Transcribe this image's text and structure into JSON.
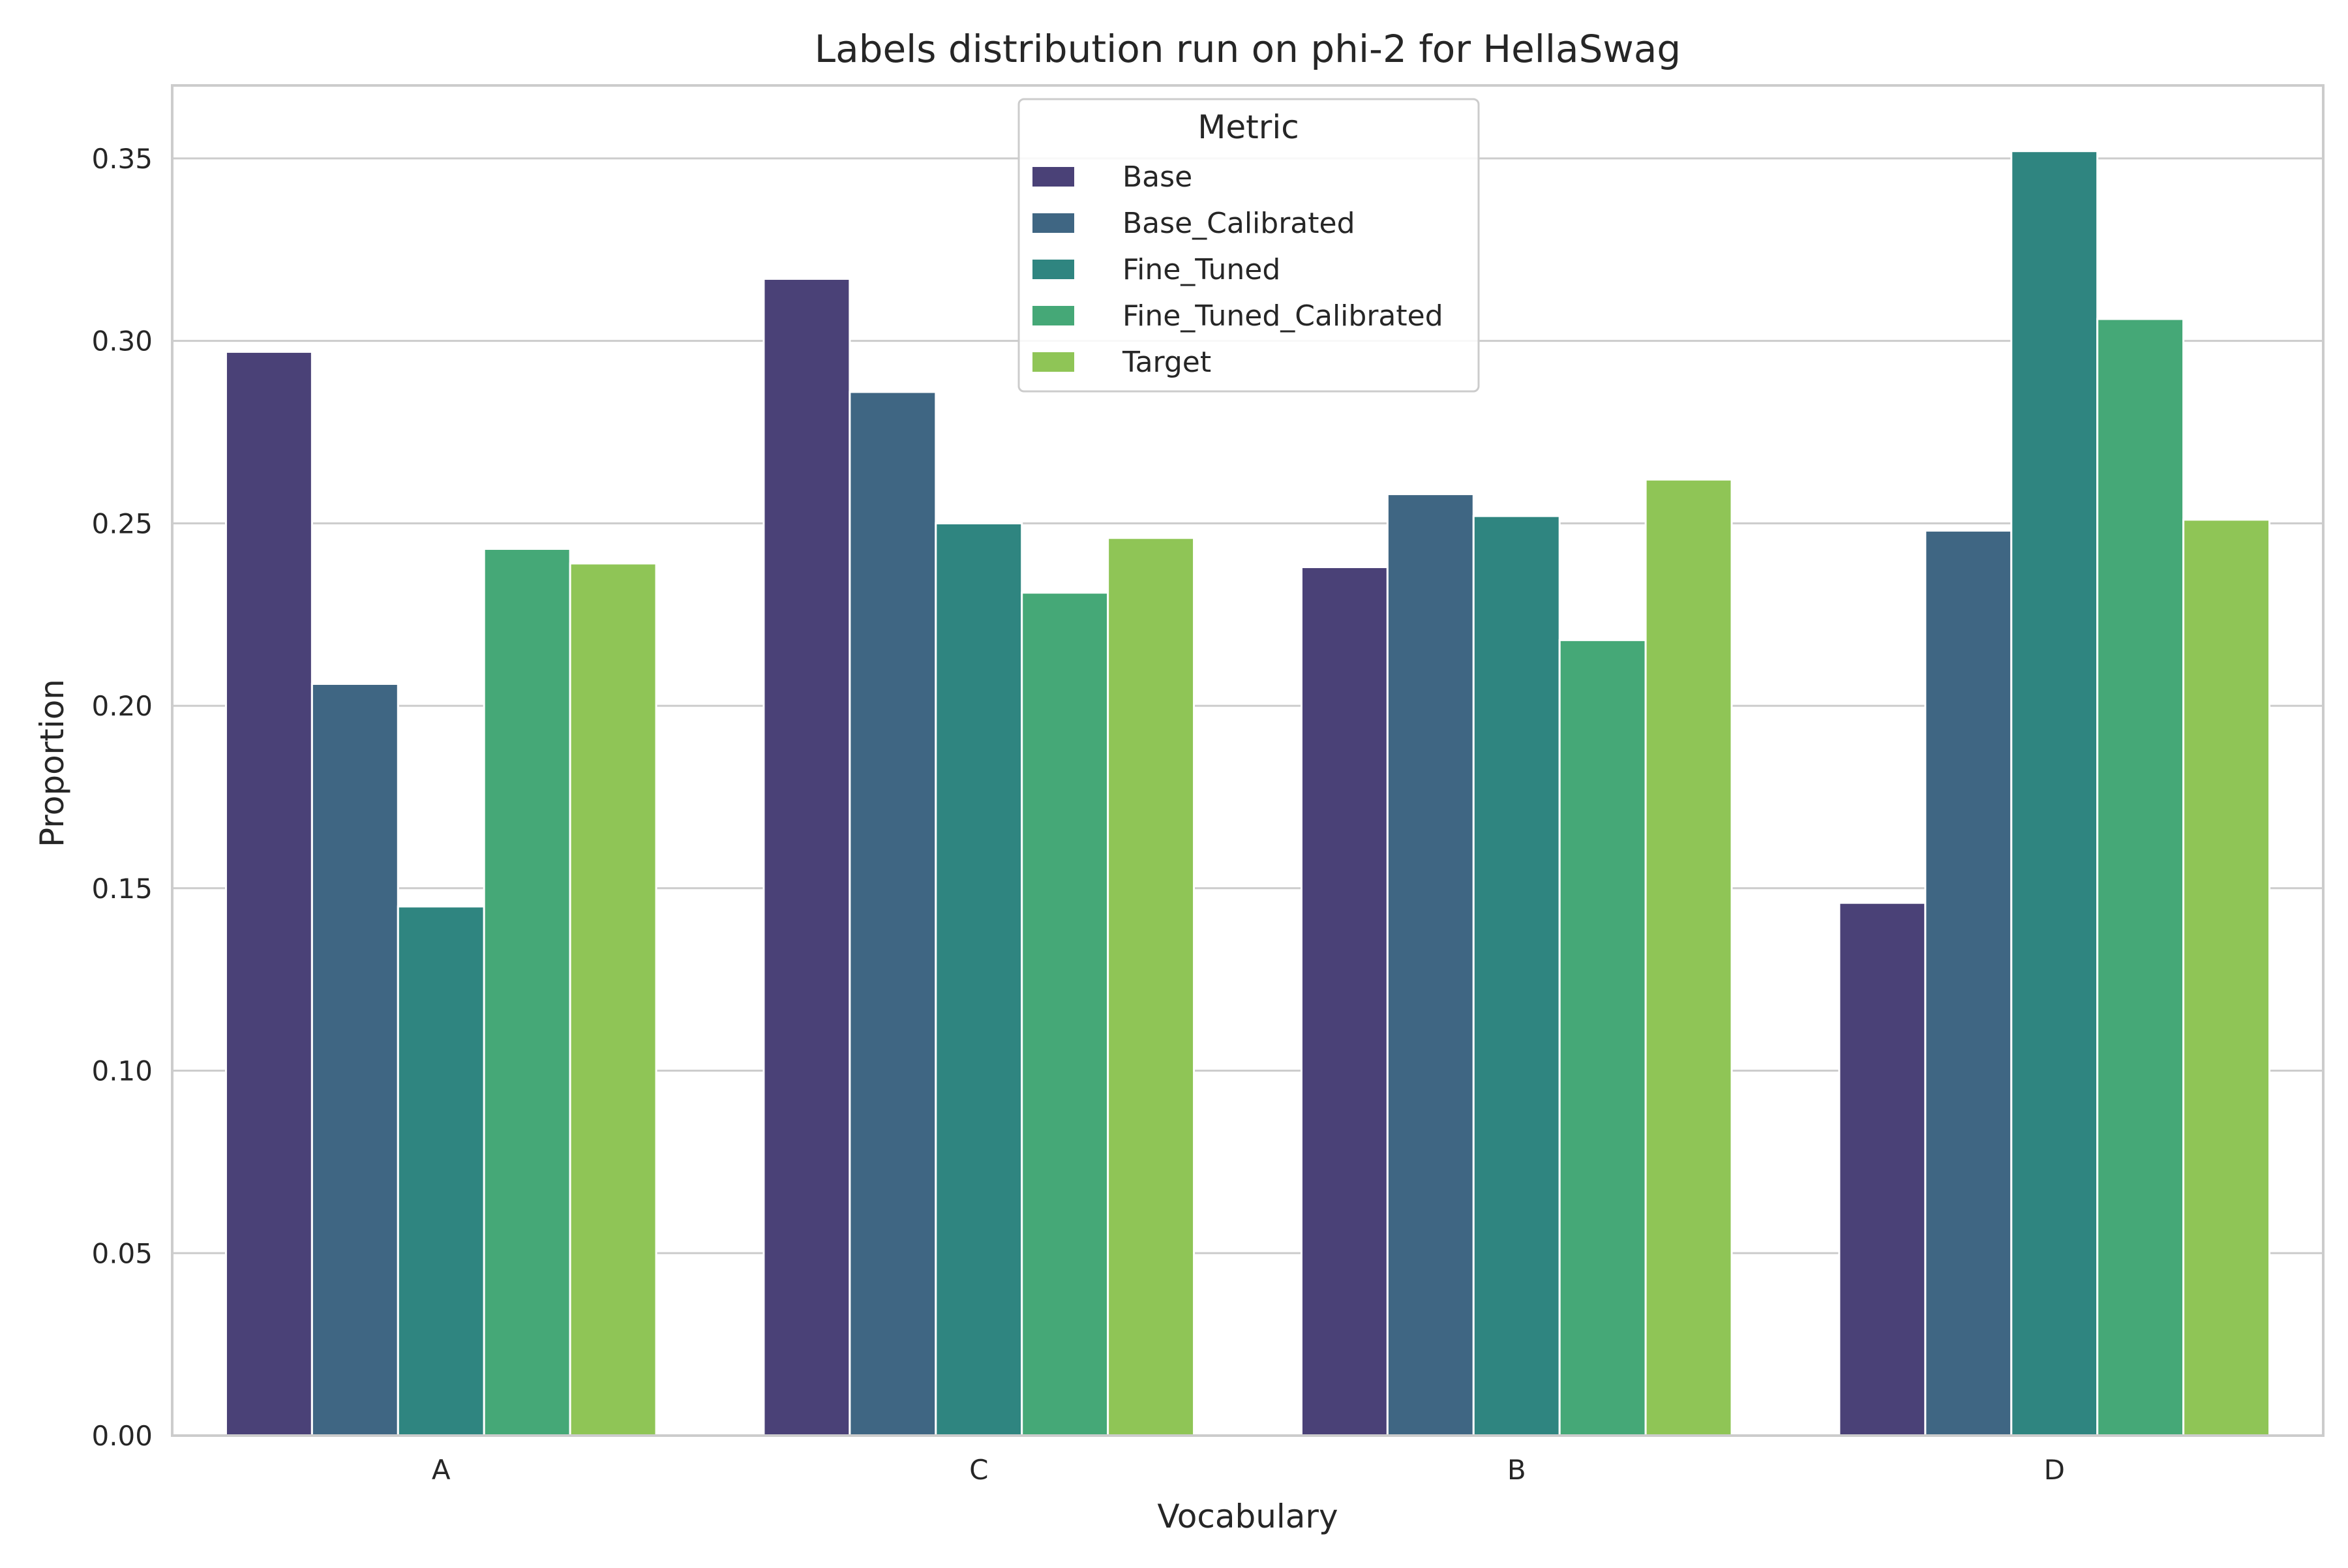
{
  "chart_data": {
    "type": "bar",
    "title": "Labels distribution run on phi-2 for HellaSwag",
    "xlabel": "Vocabulary",
    "ylabel": "Proportion",
    "categories": [
      "A",
      "C",
      "B",
      "D"
    ],
    "ylim": [
      0,
      0.37
    ],
    "yticks": [
      "0.00",
      "0.05",
      "0.10",
      "0.15",
      "0.20",
      "0.25",
      "0.30",
      "0.35"
    ],
    "grid": true,
    "legend": {
      "title": "Metric",
      "placement": "top-center"
    },
    "series": [
      {
        "name": "Base",
        "color": "#4a4177",
        "values": [
          0.297,
          0.317,
          0.238,
          0.146
        ]
      },
      {
        "name": "Base_Calibrated",
        "color": "#3f6683",
        "values": [
          0.206,
          0.286,
          0.258,
          0.248
        ]
      },
      {
        "name": "Fine_Tuned",
        "color": "#2f8580",
        "values": [
          0.145,
          0.25,
          0.252,
          0.352
        ]
      },
      {
        "name": "Fine_Tuned_Calibrated",
        "color": "#45a877",
        "values": [
          0.243,
          0.231,
          0.218,
          0.306
        ]
      },
      {
        "name": "Target",
        "color": "#8fc556",
        "values": [
          0.239,
          0.246,
          0.262,
          0.251
        ]
      }
    ]
  }
}
